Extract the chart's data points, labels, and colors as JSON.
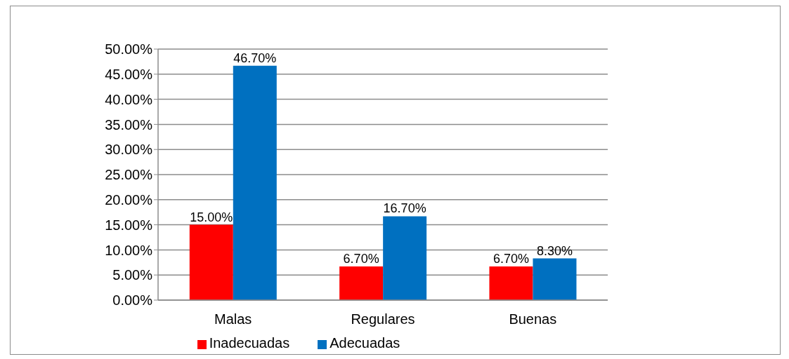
{
  "chart_data": {
    "type": "bar",
    "categories": [
      "Malas",
      "Regulares",
      "Buenas"
    ],
    "series": [
      {
        "name": "Inadecuadas",
        "color": "#ff0000",
        "values": [
          15.0,
          6.7,
          6.7
        ],
        "value_labels": [
          "15.00%",
          "6.70%",
          "6.70%"
        ]
      },
      {
        "name": "Adecuadas",
        "color": "#0070c0",
        "values": [
          46.7,
          16.7,
          8.3
        ],
        "value_labels": [
          "46.70%",
          "16.70%",
          "8.30%"
        ]
      }
    ],
    "ylim": [
      0,
      50
    ],
    "yticks": [
      {
        "value": 0,
        "label": "0.00%"
      },
      {
        "value": 5,
        "label": "5.00%"
      },
      {
        "value": 10,
        "label": "10.00%"
      },
      {
        "value": 15,
        "label": "15.00%"
      },
      {
        "value": 20,
        "label": "20.00%"
      },
      {
        "value": 25,
        "label": "25.00%"
      },
      {
        "value": 30,
        "label": "30.00%"
      },
      {
        "value": 35,
        "label": "35.00%"
      },
      {
        "value": 40,
        "label": "40.00%"
      },
      {
        "value": 45,
        "label": "45.00%"
      },
      {
        "value": 50,
        "label": "50.00%"
      }
    ],
    "grid": "y",
    "legend": "bottom"
  }
}
